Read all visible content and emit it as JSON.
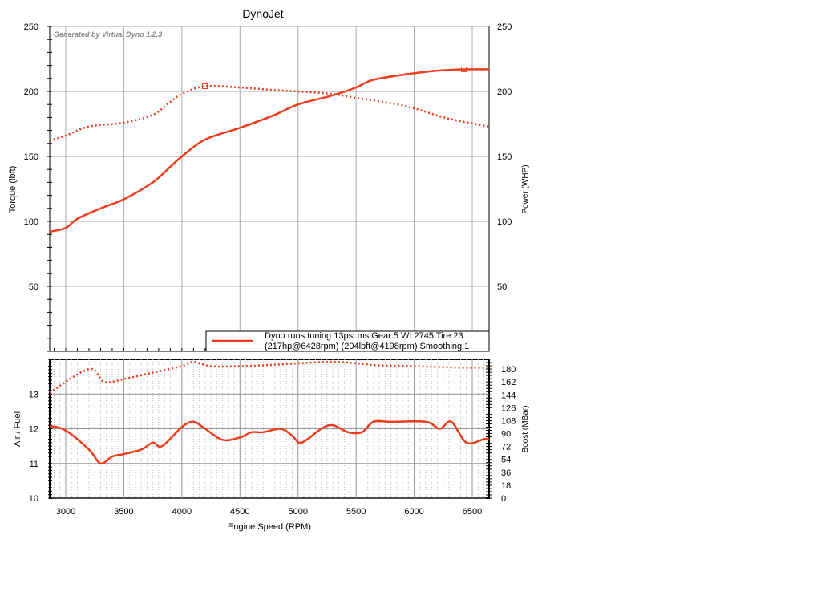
{
  "chart_data": [
    {
      "type": "line",
      "title": "DynoJet",
      "watermark": "Generated by Virtual Dyno 1.2.3",
      "ylabel": "Torque (lbft)",
      "y2label": "Power (WHP)",
      "ylim": [
        0,
        250
      ],
      "xlim": [
        2862,
        6644
      ],
      "yticks": [
        50,
        100,
        150,
        200,
        250
      ],
      "legend": {
        "line1": "Dyno runs tuning 13psi.ms Gear:5 Wt:2745 Tire:23",
        "line2": "(217hp@6428rpm) (204lbft@4198rpm) Smoothing:1",
        "placement": "bottom-right"
      },
      "color": "#f03c1e",
      "series": [
        {
          "name": "Power (WHP)",
          "style": "solid",
          "x": [
            2862,
            3000,
            3100,
            3300,
            3500,
            3750,
            3900,
            4000,
            4200,
            4500,
            4800,
            5000,
            5300,
            5500,
            5650,
            6000,
            6200,
            6428,
            6644
          ],
          "y": [
            92,
            95,
            102,
            110,
            117,
            130,
            142,
            150,
            163,
            172,
            182,
            190,
            197,
            203,
            209,
            214,
            216,
            217,
            217
          ],
          "peak": [
            6428,
            217
          ]
        },
        {
          "name": "Torque (lbft)",
          "style": "dotted",
          "x": [
            2862,
            3000,
            3200,
            3500,
            3750,
            3900,
            4000,
            4198,
            4500,
            4800,
            5000,
            5300,
            5500,
            5800,
            6000,
            6300,
            6644
          ],
          "y": [
            162,
            166,
            173,
            176,
            182,
            192,
            198,
            204,
            203,
            201,
            200,
            198,
            195,
            191,
            187,
            179,
            173
          ],
          "peak": [
            4198,
            204
          ]
        }
      ]
    },
    {
      "type": "line",
      "xlabel": "Engine Speed (RPM)",
      "ylabel": "Air / Fuel",
      "y2label": "Boost (MBar)",
      "xticks": [
        3000,
        3500,
        4000,
        4500,
        5000,
        5500,
        6000,
        6500
      ],
      "yticks": [
        10,
        11,
        12,
        13
      ],
      "y2ticks": [
        0,
        18,
        36,
        54,
        72,
        90,
        108,
        126,
        144,
        162,
        180
      ],
      "ylim": [
        10,
        14
      ],
      "y2lim": [
        0,
        193.5
      ],
      "series": [
        {
          "name": "Air / Fuel",
          "style": "solid",
          "axis": "left",
          "x": [
            2862,
            3000,
            3200,
            3300,
            3400,
            3500,
            3650,
            3750,
            3830,
            4000,
            4100,
            4200,
            4350,
            4500,
            4600,
            4700,
            4850,
            4950,
            5030,
            5200,
            5300,
            5430,
            5550,
            5650,
            5800,
            6100,
            6220,
            6320,
            6450,
            6600,
            6644
          ],
          "y": [
            12.08,
            11.95,
            11.4,
            11.0,
            11.2,
            11.27,
            11.4,
            11.6,
            11.5,
            12.05,
            12.2,
            12.0,
            11.68,
            11.75,
            11.9,
            11.9,
            12.0,
            11.8,
            11.6,
            12.0,
            12.1,
            11.9,
            11.9,
            12.2,
            12.2,
            12.2,
            12.0,
            12.2,
            11.6,
            11.7,
            11.7
          ]
        },
        {
          "name": "Boost (MBar)",
          "style": "dotted",
          "axis": "right",
          "x": [
            2862,
            3200,
            3330,
            3500,
            3750,
            4000,
            4100,
            4250,
            4500,
            4800,
            5000,
            5300,
            5500,
            5700,
            6000,
            6400,
            6644
          ],
          "y": [
            147,
            180,
            162,
            166,
            175,
            184,
            190,
            184,
            184,
            186,
            188,
            190,
            188,
            185,
            184,
            182,
            182
          ]
        }
      ]
    }
  ]
}
